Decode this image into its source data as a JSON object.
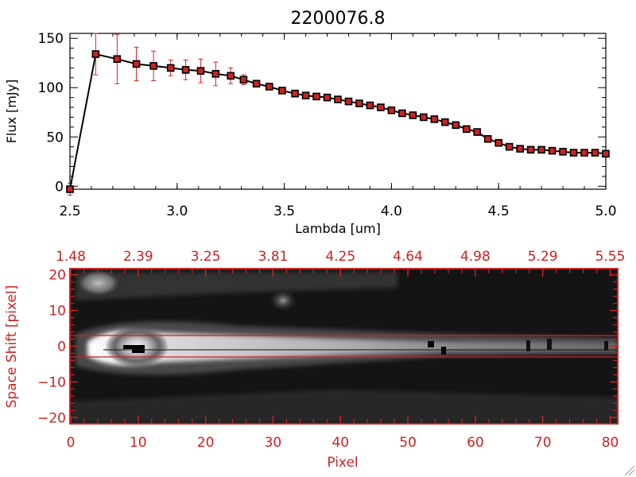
{
  "chart_data": [
    {
      "type": "line",
      "title": "2200076.8",
      "xlabel": "Lambda [um]",
      "ylabel": "Flux [mJy]",
      "xlim": [
        2.5,
        5.0
      ],
      "ylim": [
        -3,
        155
      ],
      "xticks": [
        2.5,
        3.0,
        3.5,
        4.0,
        4.5,
        5.0
      ],
      "xtick_labels": [
        "2.5",
        "3.0",
        "3.5",
        "4.0",
        "4.5",
        "5.0"
      ],
      "yticks": [
        0,
        50,
        100,
        150
      ],
      "ytick_labels": [
        "0",
        "50",
        "100",
        "150"
      ],
      "line_color": "#000000",
      "marker_color": "#cc2222",
      "errorbar_color": "#dd2222",
      "series": [
        {
          "name": "flux",
          "x": [
            2.5,
            2.62,
            2.72,
            2.81,
            2.89,
            2.97,
            3.04,
            3.11,
            3.18,
            3.25,
            3.31,
            3.37,
            3.43,
            3.49,
            3.55,
            3.6,
            3.65,
            3.7,
            3.75,
            3.8,
            3.85,
            3.9,
            3.95,
            4.0,
            4.05,
            4.1,
            4.15,
            4.2,
            4.25,
            4.3,
            4.35,
            4.4,
            4.45,
            4.5,
            4.55,
            4.6,
            4.65,
            4.7,
            4.75,
            4.8,
            4.85,
            4.9,
            4.95,
            5.0
          ],
          "y": [
            -3,
            134,
            129,
            124,
            122,
            120,
            118,
            117,
            114,
            112,
            108,
            104,
            101,
            97,
            94,
            92,
            91,
            90,
            88,
            86,
            84,
            82,
            80,
            77,
            74,
            72,
            70,
            68,
            65,
            62,
            58,
            55,
            48,
            44,
            40,
            38,
            37,
            37,
            36,
            35,
            34,
            34,
            34,
            33
          ],
          "yerr": [
            6,
            21,
            25,
            17,
            15,
            8,
            10,
            12,
            12,
            8,
            5,
            2,
            2,
            2,
            2,
            2,
            2,
            2,
            2,
            2,
            2,
            2,
            2,
            2,
            2,
            2,
            2,
            2,
            2,
            2,
            2,
            2,
            2,
            2,
            2,
            2,
            2,
            2,
            2,
            2,
            2,
            2,
            2,
            2
          ]
        }
      ]
    },
    {
      "type": "heatmap",
      "xlabel": "Pixel",
      "ylabel": "Space Shift [pixel]",
      "xlim": [
        0,
        81
      ],
      "ylim": [
        -21.5,
        21.5
      ],
      "xticks": [
        0,
        10,
        20,
        30,
        40,
        50,
        60,
        70,
        80
      ],
      "xtick_labels": [
        "0",
        "10",
        "20",
        "30",
        "40",
        "50",
        "60",
        "70",
        "80"
      ],
      "yticks": [
        -20,
        -10,
        0,
        10,
        20
      ],
      "ytick_labels": [
        "−20",
        "−10",
        "0",
        "10",
        "20"
      ],
      "top_axis_labels": [
        "1.48",
        "2.39",
        "3.25",
        "3.81",
        "4.25",
        "4.64",
        "4.98",
        "5.29",
        "5.55"
      ],
      "extraction_window": [
        -3,
        3
      ],
      "axis_color": "#cc2222"
    }
  ]
}
